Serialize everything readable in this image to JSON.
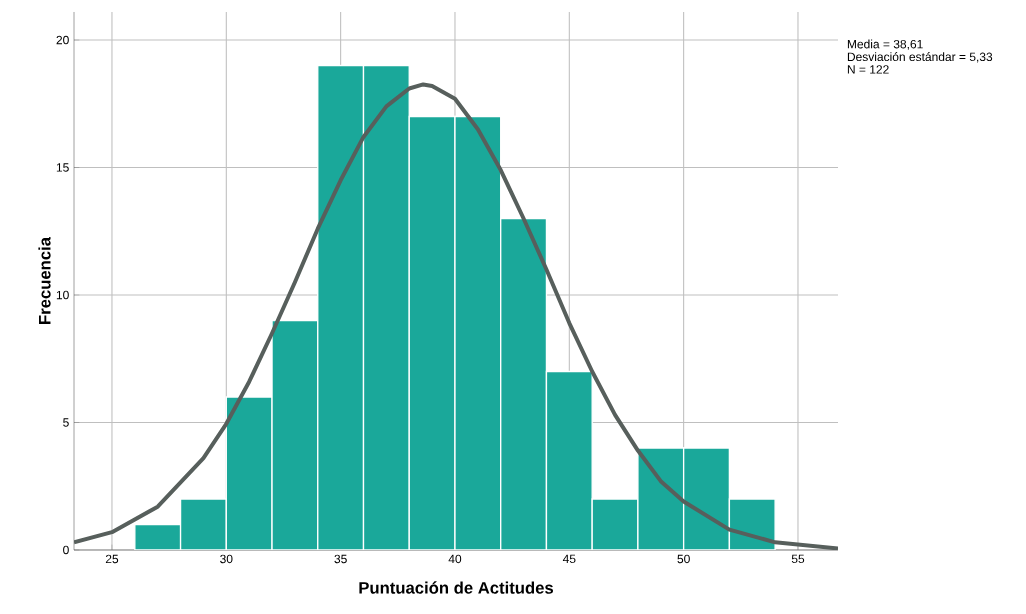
{
  "chart_data": {
    "type": "histogram",
    "xlabel": "Puntuación de Actitudes",
    "ylabel": "Frecuencia",
    "annotations": [
      "Media = 38,61",
      "Desviación estándar = 5,33",
      "N = 122"
    ],
    "bins": [
      26,
      28,
      30,
      32,
      34,
      36,
      38,
      40,
      42,
      44,
      46,
      48,
      50,
      52,
      54
    ],
    "series": [
      {
        "color": "#1aa89a",
        "values": [
          1,
          2,
          6,
          9,
          19,
          19,
          17,
          17,
          13,
          7,
          2,
          4,
          4,
          2
        ]
      },
      {
        "type": "line",
        "color": "#575f5c",
        "x": [
          23.34,
          25,
          27,
          29,
          30,
          31,
          32,
          33,
          34,
          35,
          36,
          37,
          38,
          38.61,
          39,
          40,
          41,
          42,
          43,
          44,
          45,
          46,
          47,
          48,
          49,
          50,
          52,
          54,
          56.75
        ],
        "values": [
          0.3,
          0.7,
          1.7,
          3.6,
          4.95,
          6.6,
          8.5,
          10.5,
          12.6,
          14.5,
          16.2,
          17.4,
          18.1,
          18.26,
          18.2,
          17.7,
          16.5,
          14.9,
          13.0,
          11.0,
          8.9,
          7.0,
          5.3,
          3.9,
          2.7,
          1.9,
          0.8,
          0.3,
          0.06
        ]
      }
    ],
    "xlim": [
      23.34,
      56.75
    ],
    "ylim": [
      0,
      21.1
    ],
    "xticks": [
      25,
      30,
      35,
      40,
      45,
      50,
      55
    ],
    "yticks": [
      0,
      5,
      10,
      15,
      20
    ],
    "grid": true,
    "line_style": "solid",
    "marker": "none"
  }
}
